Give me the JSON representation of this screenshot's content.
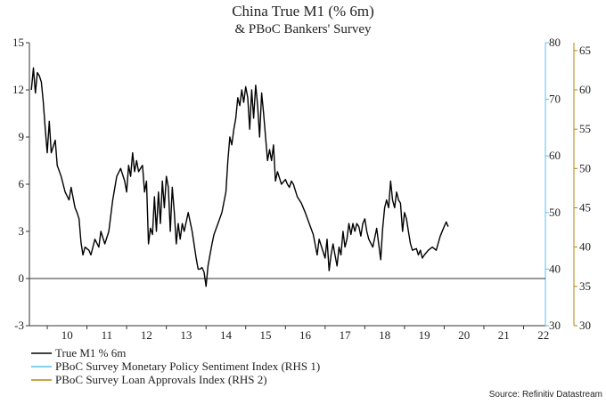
{
  "chart_data": {
    "type": "line",
    "title": "China True M1 (% 6m)",
    "subtitle": "& PBoC Bankers' Survey",
    "source": "Source: Refinitiv Datastream",
    "x_ticks": [
      "10",
      "11",
      "12",
      "13",
      "14",
      "15",
      "16",
      "17",
      "18",
      "19",
      "20",
      "21",
      "22"
    ],
    "x_range": [
      2009.55,
      2022.55
    ],
    "axes": {
      "left": {
        "ylim": [
          -3,
          15
        ],
        "ticks": [
          "15",
          "12",
          "9",
          "6",
          "3",
          "0",
          "-3"
        ],
        "tick_values": [
          15,
          12,
          9,
          6,
          3,
          0,
          -3
        ]
      },
      "rhs1": {
        "ylim": [
          30,
          80
        ],
        "ticks": [
          "80",
          "70",
          "60",
          "50",
          "40",
          "30"
        ],
        "tick_values": [
          80,
          70,
          60,
          50,
          40,
          30
        ],
        "color": "#5bc0eb"
      },
      "rhs2": {
        "ylim": [
          30,
          66
        ],
        "ticks": [
          "65",
          "60",
          "55",
          "50",
          "45",
          "40",
          "35",
          "30"
        ],
        "tick_values": [
          65,
          60,
          55,
          50,
          45,
          40,
          35,
          30
        ],
        "color": "#b8860b"
      }
    },
    "zero_line": 0,
    "series": [
      {
        "name": "True M1 % 6m",
        "axis": "left",
        "color": "#000000",
        "points": [
          [
            2009.6,
            12.0
          ],
          [
            2009.65,
            13.4
          ],
          [
            2009.7,
            11.8
          ],
          [
            2009.75,
            13.1
          ],
          [
            2009.8,
            12.9
          ],
          [
            2009.85,
            12.5
          ],
          [
            2009.9,
            11.2
          ],
          [
            2009.95,
            9.5
          ],
          [
            2010.0,
            8.0
          ],
          [
            2010.05,
            10.0
          ],
          [
            2010.1,
            8.0
          ],
          [
            2010.2,
            8.8
          ],
          [
            2010.25,
            7.2
          ],
          [
            2010.35,
            6.5
          ],
          [
            2010.45,
            5.5
          ],
          [
            2010.55,
            5.0
          ],
          [
            2010.6,
            5.8
          ],
          [
            2010.7,
            4.5
          ],
          [
            2010.75,
            4.2
          ],
          [
            2010.8,
            3.8
          ],
          [
            2010.85,
            2.3
          ],
          [
            2010.9,
            1.5
          ],
          [
            2010.95,
            2.0
          ],
          [
            2011.05,
            1.8
          ],
          [
            2011.1,
            1.5
          ],
          [
            2011.2,
            2.5
          ],
          [
            2011.3,
            2.0
          ],
          [
            2011.35,
            3.0
          ],
          [
            2011.45,
            2.2
          ],
          [
            2011.55,
            3.0
          ],
          [
            2011.65,
            5.0
          ],
          [
            2011.75,
            6.5
          ],
          [
            2011.85,
            7.0
          ],
          [
            2011.95,
            6.2
          ],
          [
            2012.0,
            5.5
          ],
          [
            2012.05,
            7.2
          ],
          [
            2012.1,
            6.5
          ],
          [
            2012.15,
            8.0
          ],
          [
            2012.2,
            6.8
          ],
          [
            2012.25,
            7.5
          ],
          [
            2012.3,
            6.8
          ],
          [
            2012.4,
            7.2
          ],
          [
            2012.45,
            5.5
          ],
          [
            2012.5,
            6.2
          ],
          [
            2012.55,
            2.2
          ],
          [
            2012.6,
            3.2
          ],
          [
            2012.65,
            2.8
          ],
          [
            2012.7,
            5.2
          ],
          [
            2012.75,
            3.0
          ],
          [
            2012.8,
            5.5
          ],
          [
            2012.85,
            3.5
          ],
          [
            2012.9,
            6.2
          ],
          [
            2012.95,
            4.5
          ],
          [
            2013.0,
            6.5
          ],
          [
            2013.05,
            5.8
          ],
          [
            2013.1,
            3.0
          ],
          [
            2013.15,
            5.8
          ],
          [
            2013.2,
            4.2
          ],
          [
            2013.25,
            2.2
          ],
          [
            2013.3,
            3.5
          ],
          [
            2013.35,
            2.5
          ],
          [
            2013.4,
            3.5
          ],
          [
            2013.45,
            3.0
          ],
          [
            2013.55,
            4.2
          ],
          [
            2013.65,
            3.0
          ],
          [
            2013.75,
            1.3
          ],
          [
            2013.8,
            0.6
          ],
          [
            2013.85,
            0.6
          ],
          [
            2013.9,
            0.7
          ],
          [
            2013.95,
            0.4
          ],
          [
            2014.0,
            -0.5
          ],
          [
            2014.05,
            0.8
          ],
          [
            2014.1,
            1.5
          ],
          [
            2014.15,
            2.2
          ],
          [
            2014.2,
            2.8
          ],
          [
            2014.3,
            3.5
          ],
          [
            2014.4,
            4.2
          ],
          [
            2014.5,
            5.5
          ],
          [
            2014.55,
            7.5
          ],
          [
            2014.6,
            9.0
          ],
          [
            2014.65,
            8.5
          ],
          [
            2014.7,
            9.5
          ],
          [
            2014.75,
            10.2
          ],
          [
            2014.8,
            11.5
          ],
          [
            2014.85,
            11.0
          ],
          [
            2014.9,
            12.0
          ],
          [
            2014.95,
            11.2
          ],
          [
            2015.0,
            12.2
          ],
          [
            2015.05,
            11.5
          ],
          [
            2015.1,
            9.5
          ],
          [
            2015.15,
            12.0
          ],
          [
            2015.2,
            10.2
          ],
          [
            2015.25,
            12.3
          ],
          [
            2015.3,
            11.0
          ],
          [
            2015.35,
            9.0
          ],
          [
            2015.4,
            11.8
          ],
          [
            2015.45,
            10.5
          ],
          [
            2015.5,
            9.0
          ],
          [
            2015.55,
            7.5
          ],
          [
            2015.6,
            8.2
          ],
          [
            2015.65,
            7.5
          ],
          [
            2015.7,
            8.5
          ],
          [
            2015.75,
            6.2
          ],
          [
            2015.8,
            6.8
          ],
          [
            2015.9,
            6.0
          ],
          [
            2016.0,
            6.3
          ],
          [
            2016.05,
            6.0
          ],
          [
            2016.1,
            5.8
          ],
          [
            2016.15,
            6.2
          ],
          [
            2016.2,
            6.0
          ],
          [
            2016.3,
            5.2
          ],
          [
            2016.4,
            4.8
          ],
          [
            2016.5,
            4.2
          ],
          [
            2016.6,
            3.5
          ],
          [
            2016.7,
            2.8
          ],
          [
            2016.8,
            1.5
          ],
          [
            2016.85,
            2.5
          ],
          [
            2016.95,
            1.7
          ],
          [
            2017.0,
            1.3
          ],
          [
            2017.05,
            2.5
          ],
          [
            2017.1,
            0.5
          ],
          [
            2017.15,
            1.5
          ],
          [
            2017.2,
            2.2
          ],
          [
            2017.25,
            1.5
          ],
          [
            2017.3,
            0.8
          ],
          [
            2017.35,
            2.0
          ],
          [
            2017.4,
            1.5
          ],
          [
            2017.45,
            3.0
          ],
          [
            2017.5,
            2.0
          ],
          [
            2017.55,
            2.5
          ],
          [
            2017.6,
            3.5
          ],
          [
            2017.65,
            2.8
          ],
          [
            2017.7,
            3.5
          ],
          [
            2017.75,
            3.0
          ],
          [
            2017.8,
            3.5
          ],
          [
            2017.85,
            3.3
          ],
          [
            2017.9,
            2.7
          ],
          [
            2017.95,
            3.5
          ],
          [
            2018.0,
            3.8
          ],
          [
            2018.05,
            3.0
          ],
          [
            2018.1,
            2.5
          ],
          [
            2018.2,
            2.0
          ],
          [
            2018.3,
            3.2
          ],
          [
            2018.4,
            1.2
          ],
          [
            2018.45,
            3.2
          ],
          [
            2018.5,
            4.5
          ],
          [
            2018.55,
            5.0
          ],
          [
            2018.6,
            4.5
          ],
          [
            2018.65,
            6.2
          ],
          [
            2018.7,
            5.0
          ],
          [
            2018.75,
            4.5
          ],
          [
            2018.8,
            5.5
          ],
          [
            2018.85,
            5.0
          ],
          [
            2018.9,
            4.8
          ],
          [
            2018.95,
            3.0
          ],
          [
            2019.0,
            4.2
          ],
          [
            2019.05,
            3.8
          ],
          [
            2019.1,
            3.0
          ],
          [
            2019.15,
            2.2
          ],
          [
            2019.2,
            1.8
          ],
          [
            2019.3,
            1.9
          ],
          [
            2019.35,
            1.5
          ],
          [
            2019.4,
            1.8
          ],
          [
            2019.45,
            1.3
          ],
          [
            2019.5,
            1.5
          ],
          [
            2019.6,
            1.8
          ],
          [
            2019.7,
            2.0
          ],
          [
            2019.8,
            1.8
          ],
          [
            2019.9,
            2.7
          ],
          [
            2020.0,
            3.3
          ],
          [
            2020.05,
            3.6
          ],
          [
            2020.1,
            3.3
          ]
        ]
      },
      {
        "name": "PBoC Survey Monetary Policy Sentiment Index (RHS 1)",
        "axis": "rhs1",
        "color": "#5bc0eb",
        "points": []
      },
      {
        "name": "PBoC Survey Loan Approvals Index (RHS 2)",
        "axis": "rhs2",
        "color": "#b8860b",
        "points": []
      }
    ]
  }
}
